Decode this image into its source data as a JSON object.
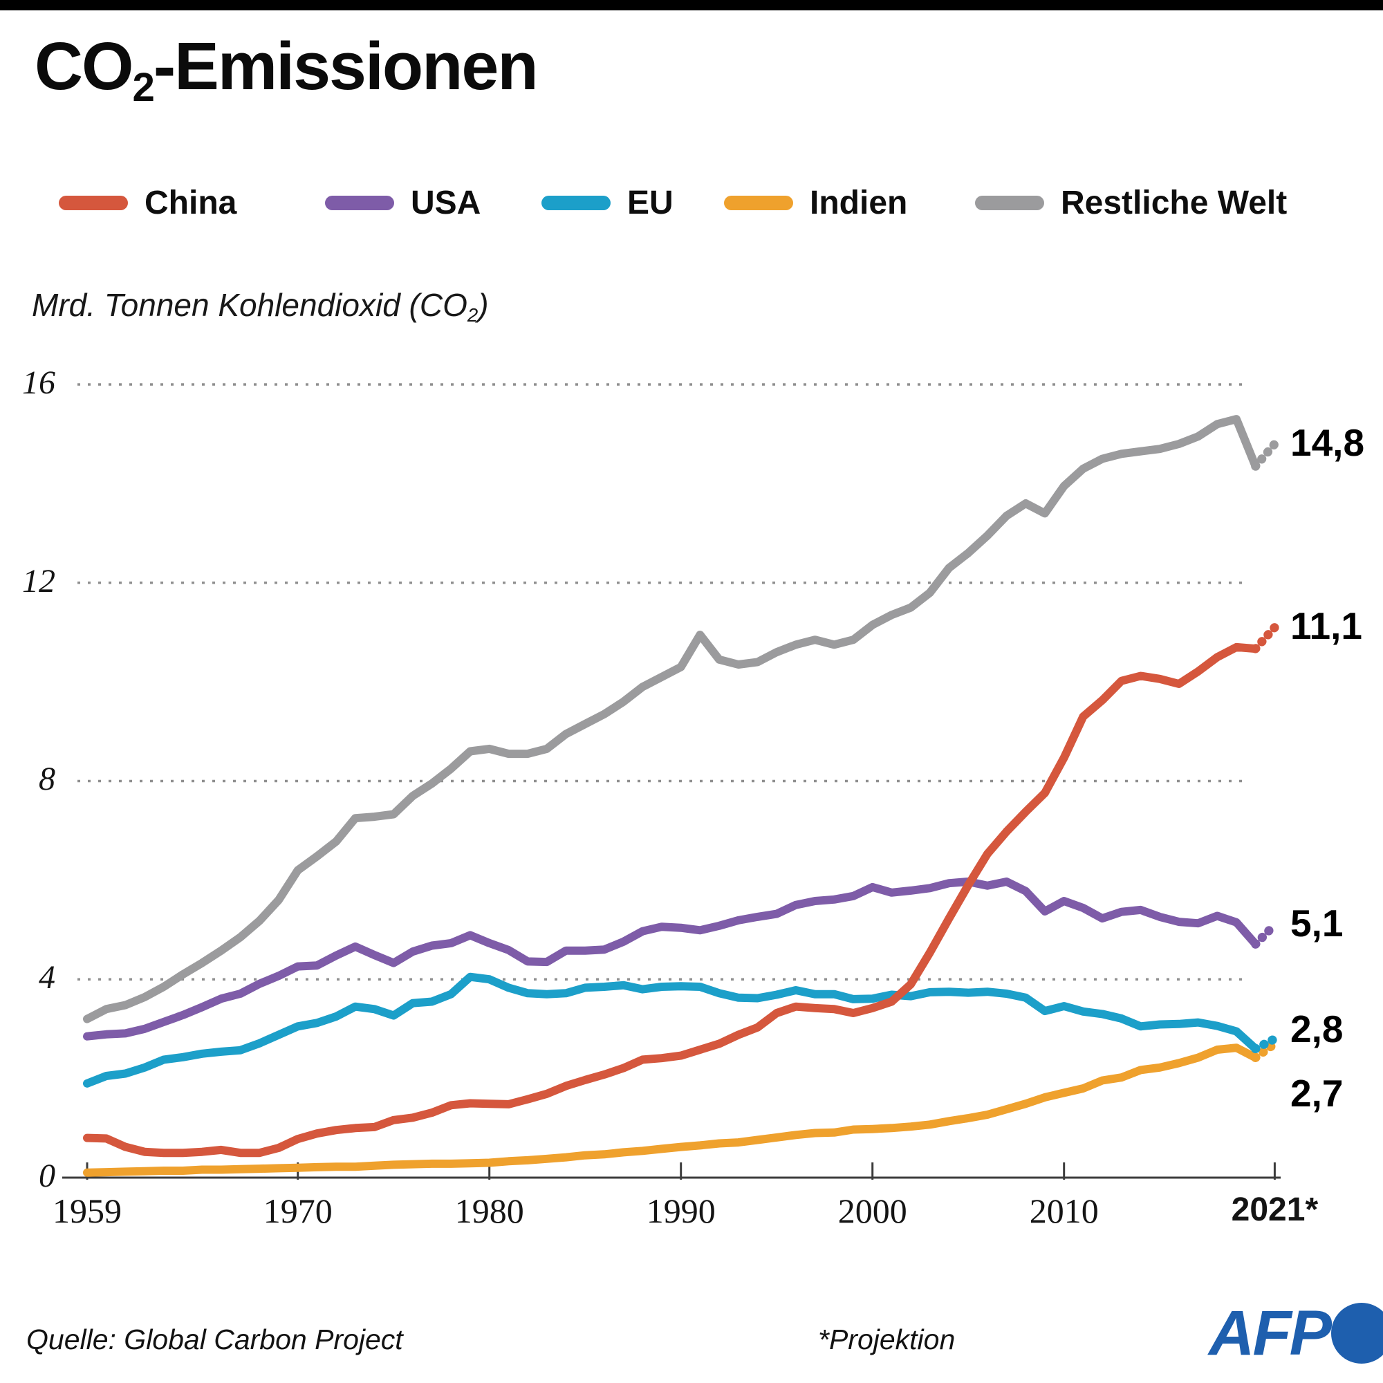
{
  "page": {
    "title": {
      "pre": "CO",
      "sub": "2",
      "post": "-Emissionen"
    },
    "subtitle": {
      "pre": "Mrd. Tonnen Kohlendioxid (CO",
      "sub": "2",
      "post": ")"
    },
    "footer": {
      "source": "Quelle: Global Carbon Project",
      "projection_note": "*Projektion",
      "logo_text": "AFP"
    }
  },
  "colors": {
    "top_bar": "#000000",
    "axis": "#3c3c3c",
    "grid": "#8f8f8f",
    "afp_blue": "#1e5fae"
  },
  "chart_data": {
    "type": "line",
    "title": "CO2-Emissionen",
    "ylabel": "Mrd. Tonnen Kohlendioxid (CO2)",
    "xlabel": "",
    "ylim": [
      0,
      16
    ],
    "y_ticks": [
      0,
      4,
      8,
      12,
      16
    ],
    "grid": "horizontal dotted",
    "legend_position": "top",
    "projection_from_year": 2020,
    "x_tick_years": [
      1959,
      1970,
      1980,
      1990,
      2000,
      2010,
      2021
    ],
    "x_tick_labels": [
      "1959",
      "1970",
      "1980",
      "1990",
      "2000",
      "2010",
      "2021*"
    ],
    "x": [
      1959,
      1960,
      1961,
      1962,
      1963,
      1964,
      1965,
      1966,
      1967,
      1968,
      1969,
      1970,
      1971,
      1972,
      1973,
      1974,
      1975,
      1976,
      1977,
      1978,
      1979,
      1980,
      1981,
      1982,
      1983,
      1984,
      1985,
      1986,
      1987,
      1988,
      1989,
      1990,
      1991,
      1992,
      1993,
      1994,
      1995,
      1996,
      1997,
      1998,
      1999,
      2000,
      2001,
      2002,
      2003,
      2004,
      2005,
      2006,
      2007,
      2008,
      2009,
      2010,
      2011,
      2012,
      2013,
      2014,
      2015,
      2016,
      2017,
      2018,
      2019,
      2020,
      2021
    ],
    "series": [
      {
        "name": "China",
        "color": "#d5573d",
        "end_label": "11,1",
        "values": [
          0.8,
          0.79,
          0.62,
          0.52,
          0.5,
          0.5,
          0.52,
          0.56,
          0.5,
          0.5,
          0.6,
          0.78,
          0.89,
          0.96,
          1.0,
          1.02,
          1.16,
          1.21,
          1.31,
          1.46,
          1.5,
          1.49,
          1.48,
          1.58,
          1.69,
          1.85,
          1.97,
          2.08,
          2.21,
          2.38,
          2.41,
          2.46,
          2.58,
          2.7,
          2.88,
          3.03,
          3.32,
          3.45,
          3.42,
          3.4,
          3.32,
          3.42,
          3.55,
          3.9,
          4.54,
          5.23,
          5.9,
          6.53,
          6.98,
          7.38,
          7.76,
          8.47,
          9.3,
          9.63,
          10.02,
          10.12,
          10.06,
          9.96,
          10.21,
          10.5,
          10.7,
          10.67,
          11.1
        ]
      },
      {
        "name": "USA",
        "color": "#7e5ca8",
        "end_label": "5,1",
        "values": [
          2.85,
          2.89,
          2.91,
          3.0,
          3.14,
          3.28,
          3.44,
          3.61,
          3.71,
          3.91,
          4.07,
          4.26,
          4.28,
          4.48,
          4.66,
          4.49,
          4.33,
          4.56,
          4.68,
          4.73,
          4.89,
          4.73,
          4.59,
          4.36,
          4.35,
          4.58,
          4.58,
          4.6,
          4.76,
          4.97,
          5.06,
          5.04,
          4.99,
          5.08,
          5.19,
          5.26,
          5.32,
          5.5,
          5.58,
          5.61,
          5.68,
          5.86,
          5.75,
          5.79,
          5.84,
          5.94,
          5.97,
          5.89,
          5.97,
          5.78,
          5.37,
          5.58,
          5.44,
          5.23,
          5.36,
          5.4,
          5.26,
          5.16,
          5.13,
          5.28,
          5.15,
          4.71,
          5.1
        ]
      },
      {
        "name": "EU",
        "color": "#1c9fc9",
        "end_label": "2,8",
        "values": [
          1.9,
          2.05,
          2.1,
          2.22,
          2.38,
          2.43,
          2.5,
          2.54,
          2.57,
          2.71,
          2.88,
          3.05,
          3.12,
          3.25,
          3.45,
          3.4,
          3.27,
          3.52,
          3.55,
          3.7,
          4.05,
          4.0,
          3.83,
          3.72,
          3.7,
          3.72,
          3.83,
          3.85,
          3.88,
          3.8,
          3.85,
          3.86,
          3.85,
          3.72,
          3.63,
          3.62,
          3.69,
          3.78,
          3.7,
          3.7,
          3.6,
          3.61,
          3.69,
          3.66,
          3.74,
          3.75,
          3.73,
          3.75,
          3.71,
          3.63,
          3.36,
          3.46,
          3.35,
          3.3,
          3.21,
          3.05,
          3.09,
          3.1,
          3.13,
          3.06,
          2.95,
          2.6,
          2.8
        ]
      },
      {
        "name": "Indien",
        "color": "#efa12d",
        "end_label": "2,7",
        "values": [
          0.1,
          0.11,
          0.12,
          0.13,
          0.14,
          0.14,
          0.16,
          0.16,
          0.17,
          0.18,
          0.19,
          0.2,
          0.21,
          0.22,
          0.22,
          0.24,
          0.26,
          0.27,
          0.28,
          0.28,
          0.29,
          0.3,
          0.33,
          0.35,
          0.38,
          0.41,
          0.45,
          0.47,
          0.51,
          0.54,
          0.58,
          0.62,
          0.65,
          0.69,
          0.71,
          0.76,
          0.81,
          0.86,
          0.9,
          0.91,
          0.97,
          0.98,
          1.0,
          1.03,
          1.07,
          1.14,
          1.2,
          1.27,
          1.38,
          1.49,
          1.62,
          1.71,
          1.8,
          1.96,
          2.02,
          2.17,
          2.22,
          2.31,
          2.42,
          2.58,
          2.62,
          2.42,
          2.7
        ]
      },
      {
        "name": "Restliche Welt",
        "color": "#9b9b9d",
        "end_label": "14,8",
        "values": [
          3.2,
          3.4,
          3.48,
          3.64,
          3.85,
          4.1,
          4.33,
          4.58,
          4.85,
          5.18,
          5.6,
          6.2,
          6.48,
          6.78,
          7.25,
          7.28,
          7.33,
          7.7,
          7.95,
          8.25,
          8.6,
          8.65,
          8.55,
          8.55,
          8.65,
          8.95,
          9.15,
          9.35,
          9.6,
          9.9,
          10.1,
          10.3,
          10.95,
          10.45,
          10.35,
          10.4,
          10.6,
          10.75,
          10.85,
          10.75,
          10.85,
          11.15,
          11.35,
          11.5,
          11.8,
          12.3,
          12.6,
          12.95,
          13.35,
          13.6,
          13.4,
          13.95,
          14.3,
          14.5,
          14.6,
          14.65,
          14.7,
          14.8,
          14.95,
          15.2,
          15.3,
          14.35,
          14.8
        ]
      }
    ]
  }
}
